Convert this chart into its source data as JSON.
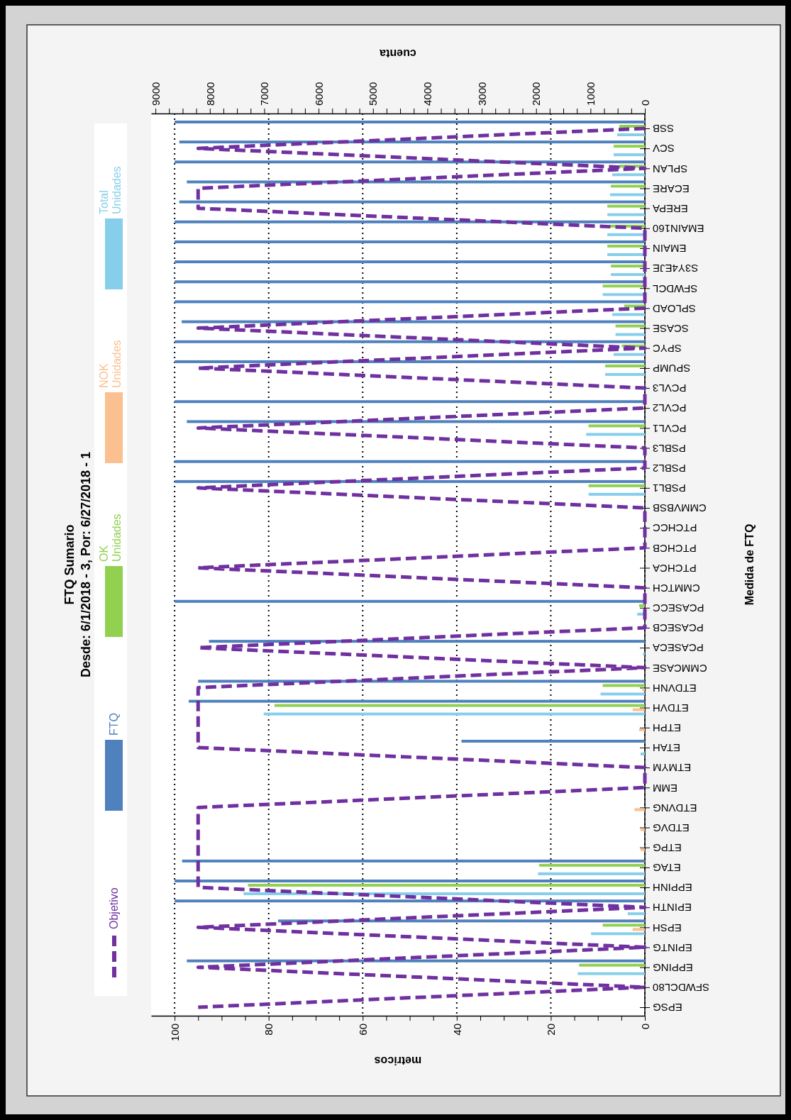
{
  "chart_data": {
    "type": "bar",
    "orientation": "horizontal",
    "title": "FTQ Sumario",
    "subtitle": "Desde: 6/1/2018 - 3, Por: 6/27/2018 - 1",
    "ylabel": "Medida de FTQ",
    "xlabel": "metricos",
    "x2label": "cuenta",
    "categories": [
      "SSB",
      "SCV",
      "SPLAN",
      "ECARE",
      "EREPA",
      "EMAIN160",
      "EMAIN",
      "S3Y4EJE",
      "SFWDCL",
      "SPLOAD",
      "SCASE",
      "SPYC",
      "SPUMP",
      "PCVL3",
      "PCVL2",
      "PCVL1",
      "PSBL3",
      "PSBL2",
      "PSBL1",
      "CMMVBSB",
      "PTCHCC",
      "PTCHCB",
      "PTCHCA",
      "CMMTCH",
      "PCASECC",
      "PCASECB",
      "PCASECA",
      "CMMCASE",
      "ETDVNH",
      "ETDVH",
      "ETPH",
      "ETAH",
      "ETMYM",
      "EMM",
      "ETDVNG",
      "ETDVG",
      "ETPG",
      "ETAG",
      "EPPINH",
      "EPINTH",
      "EPSH",
      "EPINTG",
      "EPPING",
      "SFWDCL80",
      "EPSG"
    ],
    "series": [
      {
        "name": "Objetivo",
        "type": "line",
        "line_style": "dashed",
        "color": "#7030a0",
        "values": [
          0,
          95,
          0,
          95,
          95,
          0,
          0,
          0,
          0,
          0,
          95,
          0,
          95,
          0,
          0,
          95,
          0,
          0,
          95,
          0,
          0,
          0,
          95,
          0,
          0,
          0,
          95,
          0,
          95,
          95,
          95,
          95,
          0,
          0,
          95,
          95,
          95,
          95,
          95,
          0,
          95,
          0,
          95,
          0,
          95
        ]
      },
      {
        "name": "FTQ",
        "color": "#4f81bd",
        "values": [
          100,
          99,
          100,
          97.4,
          99,
          100,
          100,
          100,
          100,
          100,
          98.5,
          100,
          100,
          null,
          100,
          97.4,
          null,
          100,
          100,
          null,
          null,
          null,
          null,
          null,
          100,
          null,
          92.7,
          null,
          95,
          97,
          null,
          39,
          null,
          null,
          null,
          null,
          null,
          98.4,
          100,
          100,
          78,
          null,
          97.4,
          null,
          null
        ]
      },
      {
        "name": "OK Unidades",
        "axis": "x2",
        "color": "#92d050",
        "values": [
          470,
          575,
          470,
          625,
          690,
          640,
          690,
          625,
          775,
          380,
          540,
          425,
          730,
          null,
          null,
          1035,
          null,
          null,
          1035,
          null,
          null,
          null,
          null,
          null,
          105,
          null,
          null,
          null,
          775,
          6810,
          null,
          null,
          null,
          null,
          null,
          null,
          null,
          1945,
          7300,
          null,
          775,
          null,
          1210,
          null,
          null
        ]
      },
      {
        "name": "NOK Unidades",
        "axis": "x2",
        "color": "#fac090",
        "values": [
          null,
          null,
          null,
          null,
          null,
          null,
          null,
          null,
          null,
          null,
          null,
          null,
          null,
          null,
          null,
          null,
          null,
          null,
          null,
          null,
          null,
          null,
          null,
          null,
          null,
          null,
          null,
          null,
          50,
          225,
          105,
          null,
          null,
          null,
          190,
          80,
          80,
          null,
          null,
          null,
          225,
          null,
          null,
          null,
          null
        ]
      },
      {
        "name": "Total Unidades",
        "axis": "x2",
        "color": "#87ceeb",
        "values": [
          510,
          575,
          600,
          640,
          690,
          690,
          690,
          625,
          775,
          600,
          540,
          575,
          730,
          null,
          null,
          1080,
          null,
          null,
          1035,
          null,
          null,
          null,
          null,
          null,
          140,
          null,
          35,
          null,
          815,
          7010,
          null,
          80,
          null,
          null,
          null,
          null,
          null,
          1965,
          7380,
          315,
          990,
          null,
          1235,
          null,
          null
        ]
      }
    ],
    "xlim": [
      105,
      0
    ],
    "xticks": [
      100,
      {
        "value": 95,
        "label": null
      },
      {
        "value": 90,
        "label": null
      },
      {
        "value": 85,
        "label": null
      },
      80,
      {
        "value": 75,
        "label": null
      },
      {
        "value": 70,
        "label": null
      },
      {
        "value": 65,
        "label": null
      },
      60,
      {
        "value": 55,
        "label": null
      },
      {
        "value": 50,
        "label": null
      },
      {
        "value": 45,
        "label": null
      },
      40,
      {
        "value": 35,
        "label": null
      },
      {
        "value": 30,
        "label": null
      },
      {
        "value": 25,
        "label": null
      },
      20,
      {
        "value": 15,
        "label": null
      },
      {
        "value": 10,
        "label": null
      },
      {
        "value": 5,
        "label": null
      },
      0
    ],
    "x2lim": [
      9080,
      0
    ],
    "x2ticks": [
      9000,
      {
        "value": 8750,
        "label": null
      },
      {
        "value": 8500,
        "label": null
      },
      {
        "value": 8250,
        "label": null
      },
      8000,
      {
        "value": 7750,
        "label": null
      },
      {
        "value": 7500,
        "label": null
      },
      {
        "value": 7250,
        "label": null
      },
      7000,
      {
        "value": 6750,
        "label": null
      },
      {
        "value": 6500,
        "label": null
      },
      {
        "value": 6250,
        "label": null
      },
      6000,
      {
        "value": 5750,
        "label": null
      },
      {
        "value": 5500,
        "label": null
      },
      {
        "value": 5250,
        "label": null
      },
      5000,
      {
        "value": 4750,
        "label": null
      },
      {
        "value": 4500,
        "label": null
      },
      {
        "value": 4250,
        "label": null
      },
      4000,
      {
        "value": 3750,
        "label": null
      },
      {
        "value": 3500,
        "label": null
      },
      {
        "value": 3250,
        "label": null
      },
      3000,
      {
        "value": 2750,
        "label": null
      },
      {
        "value": 2500,
        "label": null
      },
      {
        "value": 2250,
        "label": null
      },
      2000,
      {
        "value": 1750,
        "label": null
      },
      {
        "value": 1500,
        "label": null
      },
      {
        "value": 1250,
        "label": null
      },
      1000,
      {
        "value": 750,
        "label": null
      },
      {
        "value": 500,
        "label": null
      },
      {
        "value": 250,
        "label": null
      },
      0
    ],
    "grid": "x",
    "legend": "left"
  }
}
